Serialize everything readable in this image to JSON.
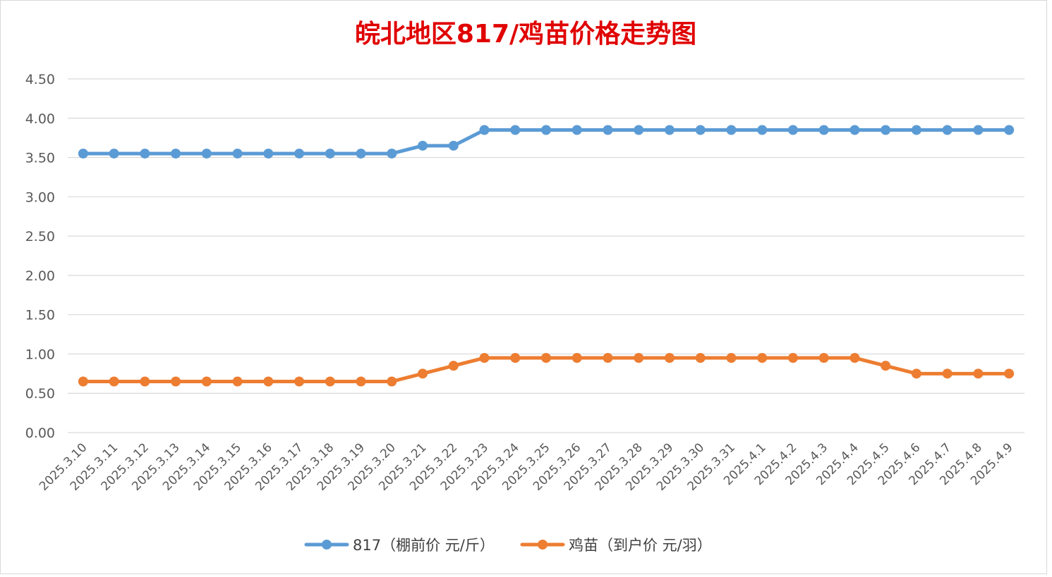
{
  "chart_data": {
    "type": "line",
    "title": "皖北地区817/鸡苗价格走势图",
    "title_color": "#e00000",
    "xlabel": "",
    "ylabel": "",
    "ylim": [
      0,
      4.5
    ],
    "y_ticks": [
      "4.50",
      "4.00",
      "3.50",
      "3.00",
      "2.50",
      "2.00",
      "1.50",
      "1.00",
      "0.50",
      "0.00"
    ],
    "y_tick_values": [
      4.5,
      4.0,
      3.5,
      3.0,
      2.5,
      2.0,
      1.5,
      1.0,
      0.5,
      0.0
    ],
    "grid": true,
    "legend_position": "bottom",
    "categories": [
      "2025.3.10",
      "2025.3.11",
      "2025.3.12",
      "2025.3.13",
      "2025.3.14",
      "2025.3.15",
      "2025.3.16",
      "2025.3.17",
      "2025.3.18",
      "2025.3.19",
      "2025.3.20",
      "2025.3.21",
      "2025.3.22",
      "2025.3.23",
      "2025.3.24",
      "2025.3.25",
      "2025.3.26",
      "2025.3.27",
      "2025.3.28",
      "2025.3.29",
      "2025.3.30",
      "2025.3.31",
      "2025.4.1",
      "2025.4.2",
      "2025.4.3",
      "2025.4.4",
      "2025.4.5",
      "2025.4.6",
      "2025.4.7",
      "2025.4.8",
      "2025.4.9"
    ],
    "series": [
      {
        "name": "817（棚前价 元/斤）",
        "color": "#5b9bd5",
        "values": [
          3.55,
          3.55,
          3.55,
          3.55,
          3.55,
          3.55,
          3.55,
          3.55,
          3.55,
          3.55,
          3.55,
          3.65,
          3.65,
          3.85,
          3.85,
          3.85,
          3.85,
          3.85,
          3.85,
          3.85,
          3.85,
          3.85,
          3.85,
          3.85,
          3.85,
          3.85,
          3.85,
          3.85,
          3.85,
          3.85,
          3.85
        ]
      },
      {
        "name": "鸡苗（到户价 元/羽）",
        "color": "#ed7d31",
        "values": [
          0.65,
          0.65,
          0.65,
          0.65,
          0.65,
          0.65,
          0.65,
          0.65,
          0.65,
          0.65,
          0.65,
          0.75,
          0.85,
          0.95,
          0.95,
          0.95,
          0.95,
          0.95,
          0.95,
          0.95,
          0.95,
          0.95,
          0.95,
          0.95,
          0.95,
          0.95,
          0.85,
          0.75,
          0.75,
          0.75,
          0.75
        ]
      }
    ]
  }
}
